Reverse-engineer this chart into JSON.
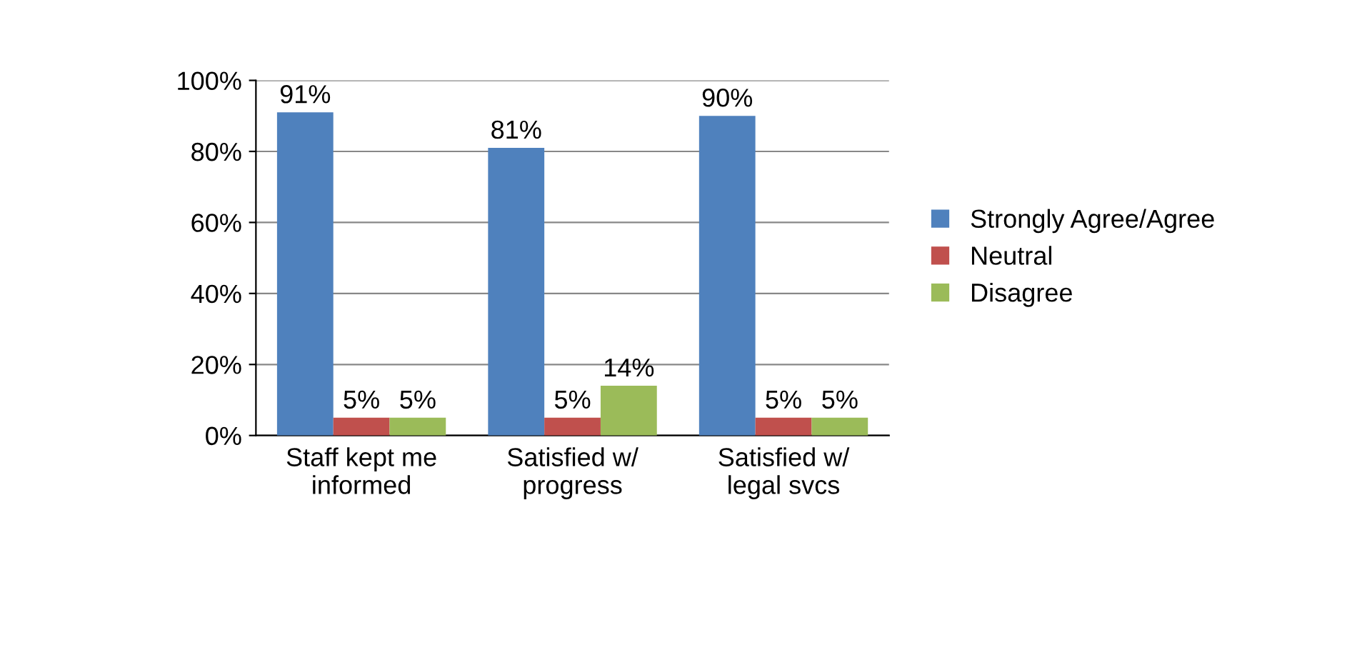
{
  "chart_data": {
    "type": "bar",
    "categories": [
      "Staff kept me\ninformed",
      "Satisfied w/\nprogress",
      "Satisfied w/\nlegal svcs"
    ],
    "series": [
      {
        "name": "Strongly Agree/Agree",
        "color": "#4f81bd",
        "values": [
          91,
          81,
          90
        ],
        "value_labels": [
          "91%",
          "81%",
          "90%"
        ]
      },
      {
        "name": "Neutral",
        "color": "#c0504d",
        "values": [
          5,
          5,
          5
        ],
        "value_labels": [
          "5%",
          "5%",
          "5%"
        ]
      },
      {
        "name": "Disagree",
        "color": "#9bbb59",
        "values": [
          5,
          14,
          5
        ],
        "value_labels": [
          "5%",
          "14%",
          "5%"
        ]
      }
    ],
    "ylim": [
      0,
      100
    ],
    "yticks": [
      {
        "value": 0,
        "label": "0%"
      },
      {
        "value": 20,
        "label": "20%"
      },
      {
        "value": 40,
        "label": "40%"
      },
      {
        "value": 60,
        "label": "60%"
      },
      {
        "value": 80,
        "label": "80%"
      },
      {
        "value": 100,
        "label": "100%"
      }
    ],
    "grid": "y",
    "legend": "right"
  }
}
